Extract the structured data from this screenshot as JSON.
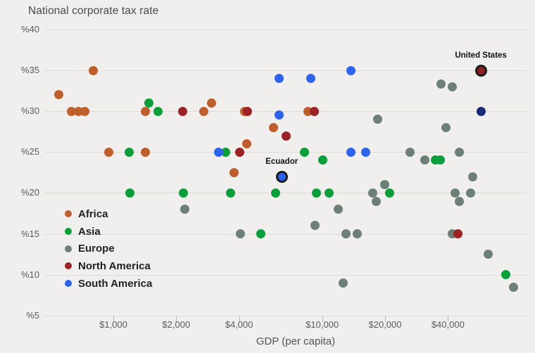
{
  "title": "National corporate tax rate",
  "axes": {
    "y": {
      "ticks": [
        {
          "value": 40,
          "label": "%40"
        },
        {
          "value": 35,
          "label": "%35"
        },
        {
          "value": 30,
          "label": "%30"
        },
        {
          "value": 25,
          "label": "%25"
        },
        {
          "value": 20,
          "label": "%20"
        },
        {
          "value": 15,
          "label": "%15"
        },
        {
          "value": 10,
          "label": "%10"
        },
        {
          "value": 5,
          "label": "%5"
        }
      ]
    },
    "x": {
      "title": "GDP (per capita)",
      "scale": "log",
      "ticks": [
        {
          "value": 1000,
          "label": "$1,000"
        },
        {
          "value": 2000,
          "label": "$2,000"
        },
        {
          "value": 4000,
          "label": "$4,000"
        },
        {
          "value": 10000,
          "label": "$10,000"
        },
        {
          "value": 20000,
          "label": "$20,000"
        },
        {
          "value": 40000,
          "label": "$40,000"
        }
      ]
    }
  },
  "legend": {
    "items": [
      {
        "label": "Africa",
        "color": "#bf5e2d"
      },
      {
        "label": "Asia",
        "color": "#0c9e3a"
      },
      {
        "label": "Europe",
        "color": "#6d8078"
      },
      {
        "label": "North America",
        "color": "#9b2226"
      },
      {
        "label": "South America",
        "color": "#2e63ea"
      }
    ]
  },
  "chart_data": {
    "type": "scatter",
    "title": "National corporate tax rate",
    "xlabel": "GDP (per capita)",
    "ylabel": "National corporate tax rate (%)",
    "x_scale": "log",
    "xlim": [
      400,
      100000
    ],
    "ylim": [
      5,
      40
    ],
    "grid": "horizontal",
    "legend_position": "inside-left-bottom",
    "series": [
      {
        "name": "Africa",
        "color": "#bf5e2d",
        "points": [
          {
            "gdp": 550,
            "rate": 32
          },
          {
            "gdp": 630,
            "rate": 30
          },
          {
            "gdp": 680,
            "rate": 30
          },
          {
            "gdp": 730,
            "rate": 30
          },
          {
            "gdp": 800,
            "rate": 35
          },
          {
            "gdp": 950,
            "rate": 25
          },
          {
            "gdp": 1420,
            "rate": 25
          },
          {
            "gdp": 1420,
            "rate": 30
          },
          {
            "gdp": 2720,
            "rate": 30
          },
          {
            "gdp": 2960,
            "rate": 31
          },
          {
            "gdp": 3770,
            "rate": 22.5
          },
          {
            "gdp": 4240,
            "rate": 30
          },
          {
            "gdp": 4340,
            "rate": 26
          },
          {
            "gdp": 5860,
            "rate": 28
          },
          {
            "gdp": 8520,
            "rate": 30
          }
        ]
      },
      {
        "name": "Asia",
        "color": "#0c9e3a",
        "points": [
          {
            "gdp": 1190,
            "rate": 25
          },
          {
            "gdp": 1200,
            "rate": 20
          },
          {
            "gdp": 1480,
            "rate": 31
          },
          {
            "gdp": 1640,
            "rate": 30
          },
          {
            "gdp": 2170,
            "rate": 20
          },
          {
            "gdp": 3460,
            "rate": 25
          },
          {
            "gdp": 3630,
            "rate": 20
          },
          {
            "gdp": 5100,
            "rate": 15
          },
          {
            "gdp": 6000,
            "rate": 20
          },
          {
            "gdp": 8250,
            "rate": 25
          },
          {
            "gdp": 9400,
            "rate": 20
          },
          {
            "gdp": 10100,
            "rate": 24
          },
          {
            "gdp": 10800,
            "rate": 20
          },
          {
            "gdp": 21000,
            "rate": 20
          },
          {
            "gdp": 34700,
            "rate": 24
          },
          {
            "gdp": 36900,
            "rate": 24
          },
          {
            "gdp": 75900,
            "rate": 10
          }
        ]
      },
      {
        "name": "Europe",
        "color": "#6d8078",
        "points": [
          {
            "gdp": 2190,
            "rate": 18
          },
          {
            "gdp": 4070,
            "rate": 15
          },
          {
            "gdp": 9270,
            "rate": 16
          },
          {
            "gdp": 11900,
            "rate": 18
          },
          {
            "gdp": 12650,
            "rate": 9
          },
          {
            "gdp": 12950,
            "rate": 15
          },
          {
            "gdp": 14700,
            "rate": 15
          },
          {
            "gdp": 17500,
            "rate": 20
          },
          {
            "gdp": 18100,
            "rate": 19
          },
          {
            "gdp": 18500,
            "rate": 29
          },
          {
            "gdp": 19900,
            "rate": 21
          },
          {
            "gdp": 26400,
            "rate": 25
          },
          {
            "gdp": 30900,
            "rate": 24
          },
          {
            "gdp": 37200,
            "rate": 33.3
          },
          {
            "gdp": 39000,
            "rate": 28
          },
          {
            "gdp": 41800,
            "rate": 33
          },
          {
            "gdp": 42100,
            "rate": 15
          },
          {
            "gdp": 43400,
            "rate": 20
          },
          {
            "gdp": 45200,
            "rate": 19
          },
          {
            "gdp": 45200,
            "rate": 25
          },
          {
            "gdp": 51500,
            "rate": 20
          },
          {
            "gdp": 52700,
            "rate": 22
          },
          {
            "gdp": 62500,
            "rate": 12.5
          },
          {
            "gdp": 82700,
            "rate": 8.5
          }
        ]
      },
      {
        "name": "North America",
        "color": "#9b2226",
        "points": [
          {
            "gdp": 2140,
            "rate": 30
          },
          {
            "gdp": 4040,
            "rate": 25
          },
          {
            "gdp": 4400,
            "rate": 30
          },
          {
            "gdp": 6700,
            "rate": 27
          },
          {
            "gdp": 9200,
            "rate": 30
          },
          {
            "gdp": 44800,
            "rate": 15
          },
          {
            "gdp": 57500,
            "rate": 35,
            "label": "United States",
            "highlight": true,
            "fill": "#8a2023",
            "ring": "#1c1c1c"
          }
        ]
      },
      {
        "name": "South America",
        "color": "#2e63ea",
        "points": [
          {
            "gdp": 3200,
            "rate": 25
          },
          {
            "gdp": 6240,
            "rate": 34
          },
          {
            "gdp": 6240,
            "rate": 29.5
          },
          {
            "gdp": 6400,
            "rate": 22,
            "label": "Ecuador",
            "highlight": true,
            "fill": "#2e5fe8",
            "ring": "#1c1c1c"
          },
          {
            "gdp": 8800,
            "rate": 34
          },
          {
            "gdp": 13700,
            "rate": 35
          },
          {
            "gdp": 13700,
            "rate": 25
          },
          {
            "gdp": 16100,
            "rate": 25
          }
        ]
      }
    ],
    "unlabeled_points": [
      {
        "gdp": 57900,
        "rate": 30,
        "color": "#1b2a78"
      }
    ]
  }
}
